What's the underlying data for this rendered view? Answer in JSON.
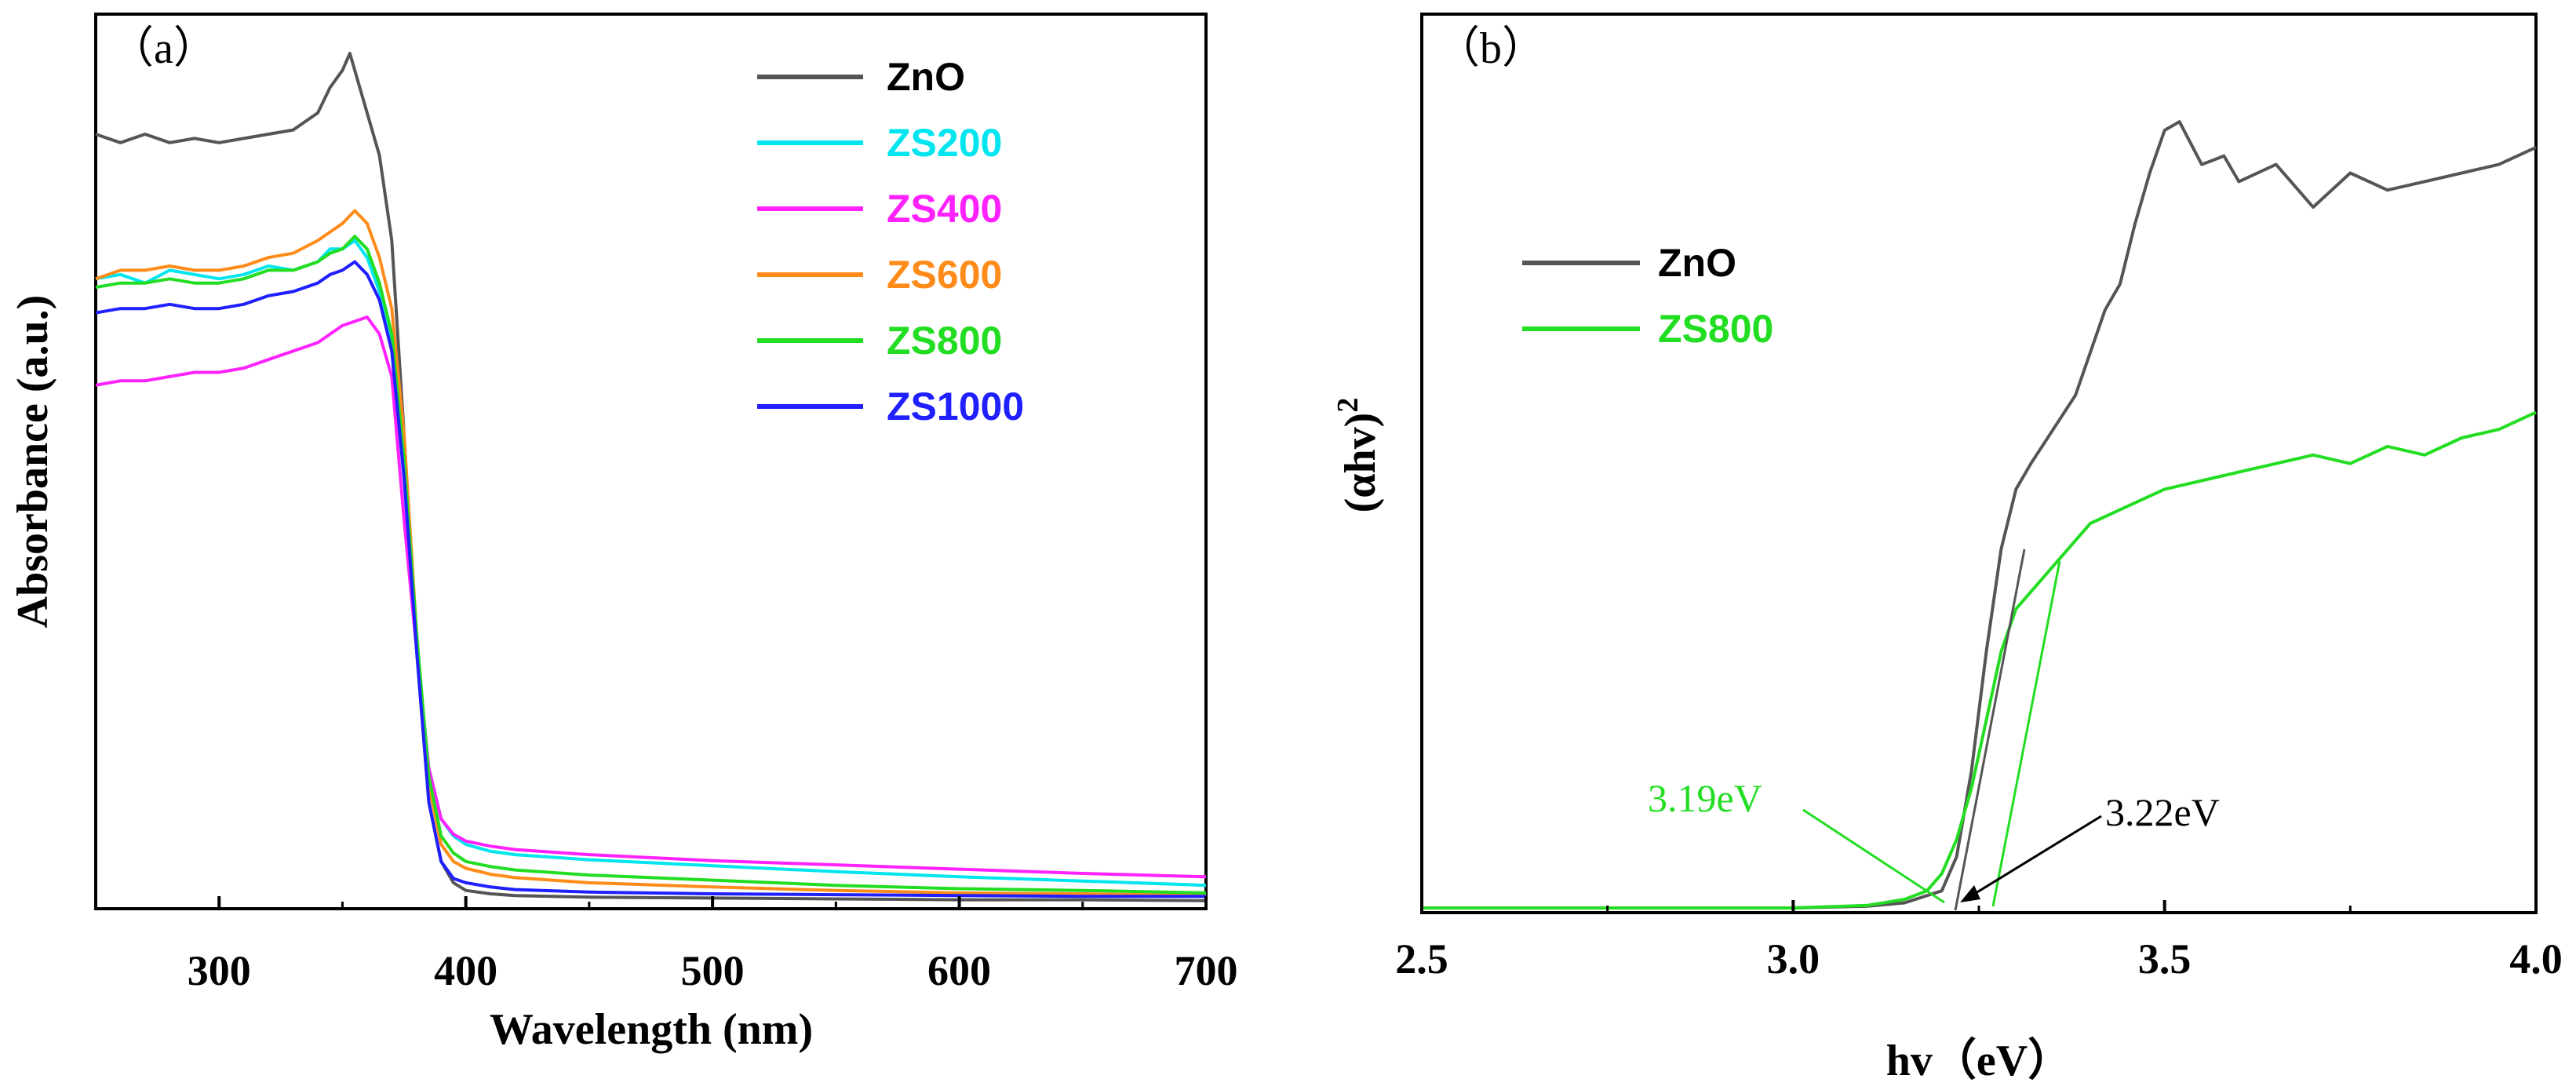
{
  "chart_data": [
    {
      "type": "line",
      "panel_label": "（a）",
      "title": "",
      "xlabel": "Wavelength (nm)",
      "ylabel": "Absorbance (a.u.)",
      "xlim": [
        250,
        700
      ],
      "ylim": [
        0,
        1.0
      ],
      "xticks": [
        300,
        400,
        500,
        600,
        700
      ],
      "yticks_shown": false,
      "legend_position": "top-right",
      "series": [
        {
          "name": "ZnO",
          "color": "#555555",
          "x": [
            250,
            260,
            270,
            280,
            290,
            300,
            310,
            320,
            330,
            340,
            345,
            350,
            353,
            356,
            360,
            365,
            370,
            375,
            380,
            385,
            390,
            395,
            400,
            410,
            420,
            450,
            500,
            550,
            600,
            650,
            700
          ],
          "y": [
            0.905,
            0.895,
            0.905,
            0.895,
            0.9,
            0.895,
            0.9,
            0.905,
            0.91,
            0.93,
            0.96,
            0.98,
            1.0,
            0.97,
            0.93,
            0.88,
            0.78,
            0.55,
            0.3,
            0.12,
            0.05,
            0.025,
            0.016,
            0.012,
            0.01,
            0.008,
            0.007,
            0.006,
            0.005,
            0.005,
            0.004
          ]
        },
        {
          "name": "ZS200",
          "color": "#00e5ee",
          "x": [
            250,
            260,
            270,
            280,
            290,
            300,
            310,
            320,
            330,
            340,
            345,
            350,
            355,
            360,
            365,
            370,
            375,
            380,
            385,
            390,
            395,
            400,
            410,
            420,
            450,
            500,
            550,
            600,
            650,
            700
          ],
          "y": [
            0.735,
            0.74,
            0.73,
            0.745,
            0.74,
            0.735,
            0.74,
            0.75,
            0.745,
            0.755,
            0.77,
            0.77,
            0.78,
            0.76,
            0.72,
            0.66,
            0.5,
            0.3,
            0.16,
            0.1,
            0.08,
            0.07,
            0.062,
            0.058,
            0.052,
            0.045,
            0.038,
            0.032,
            0.027,
            0.022
          ]
        },
        {
          "name": "ZS400",
          "color": "#ff22ff",
          "x": [
            250,
            260,
            270,
            280,
            290,
            300,
            310,
            320,
            330,
            340,
            350,
            355,
            360,
            365,
            370,
            375,
            380,
            385,
            390,
            395,
            400,
            410,
            420,
            450,
            500,
            550,
            600,
            650,
            700
          ],
          "y": [
            0.61,
            0.615,
            0.615,
            0.62,
            0.625,
            0.625,
            0.63,
            0.64,
            0.65,
            0.66,
            0.68,
            0.685,
            0.69,
            0.67,
            0.62,
            0.45,
            0.3,
            0.16,
            0.1,
            0.082,
            0.074,
            0.068,
            0.064,
            0.058,
            0.051,
            0.046,
            0.041,
            0.036,
            0.032
          ]
        },
        {
          "name": "ZS600",
          "color": "#ff8c1a",
          "x": [
            250,
            260,
            270,
            280,
            290,
            300,
            310,
            320,
            330,
            340,
            345,
            350,
            355,
            360,
            365,
            370,
            375,
            380,
            385,
            390,
            395,
            400,
            410,
            420,
            450,
            500,
            550,
            600,
            650,
            700
          ],
          "y": [
            0.735,
            0.745,
            0.745,
            0.75,
            0.745,
            0.745,
            0.75,
            0.76,
            0.765,
            0.78,
            0.79,
            0.8,
            0.815,
            0.8,
            0.76,
            0.7,
            0.55,
            0.32,
            0.14,
            0.07,
            0.05,
            0.042,
            0.035,
            0.031,
            0.025,
            0.02,
            0.016,
            0.013,
            0.012,
            0.01
          ]
        },
        {
          "name": "ZS800",
          "color": "#22dd22",
          "x": [
            250,
            260,
            270,
            280,
            290,
            300,
            310,
            320,
            330,
            340,
            345,
            350,
            355,
            360,
            365,
            370,
            375,
            380,
            385,
            390,
            395,
            400,
            410,
            420,
            450,
            500,
            550,
            600,
            650,
            700
          ],
          "y": [
            0.725,
            0.73,
            0.73,
            0.735,
            0.73,
            0.73,
            0.735,
            0.745,
            0.745,
            0.755,
            0.765,
            0.77,
            0.785,
            0.77,
            0.73,
            0.67,
            0.52,
            0.32,
            0.15,
            0.08,
            0.06,
            0.05,
            0.044,
            0.04,
            0.034,
            0.028,
            0.022,
            0.018,
            0.016,
            0.013
          ]
        },
        {
          "name": "ZS1000",
          "color": "#1f1fff",
          "x": [
            250,
            260,
            270,
            280,
            290,
            300,
            310,
            320,
            330,
            340,
            345,
            350,
            355,
            360,
            365,
            370,
            375,
            380,
            385,
            390,
            395,
            400,
            410,
            420,
            450,
            500,
            550,
            600,
            650,
            700
          ],
          "y": [
            0.695,
            0.7,
            0.7,
            0.705,
            0.7,
            0.7,
            0.705,
            0.715,
            0.72,
            0.73,
            0.74,
            0.745,
            0.755,
            0.74,
            0.71,
            0.65,
            0.5,
            0.3,
            0.12,
            0.05,
            0.03,
            0.025,
            0.02,
            0.017,
            0.014,
            0.012,
            0.011,
            0.01,
            0.009,
            0.009
          ]
        }
      ]
    },
    {
      "type": "line",
      "panel_label": "（b）",
      "title": "",
      "xlabel": "hv（eV）",
      "ylabel": "(αhv)²",
      "ylabel_base": "(αhv)",
      "ylabel_sup": "2",
      "xlim": [
        2.5,
        4.0
      ],
      "ylim": [
        0,
        1.0
      ],
      "xticks": [
        "2.5",
        "3.0",
        "3.5",
        "4.0"
      ],
      "yticks_shown": false,
      "legend_position": "top-left",
      "series": [
        {
          "name": "ZnO",
          "color": "#555555",
          "x": [
            2.5,
            2.8,
            3.0,
            3.1,
            3.15,
            3.2,
            3.22,
            3.24,
            3.26,
            3.28,
            3.3,
            3.32,
            3.35,
            3.38,
            3.4,
            3.42,
            3.44,
            3.46,
            3.48,
            3.5,
            3.52,
            3.55,
            3.58,
            3.6,
            3.65,
            3.7,
            3.75,
            3.8,
            3.85,
            3.9,
            3.95,
            4.0
          ],
          "y": [
            0.0,
            0.0,
            0.0,
            0.002,
            0.006,
            0.02,
            0.06,
            0.16,
            0.3,
            0.42,
            0.49,
            0.52,
            0.56,
            0.6,
            0.65,
            0.7,
            0.73,
            0.8,
            0.86,
            0.91,
            0.92,
            0.87,
            0.88,
            0.85,
            0.87,
            0.82,
            0.86,
            0.84,
            0.85,
            0.86,
            0.87,
            0.89
          ]
        },
        {
          "name": "ZS800",
          "color": "#22dd22",
          "x": [
            2.5,
            2.8,
            3.0,
            3.1,
            3.15,
            3.18,
            3.2,
            3.22,
            3.24,
            3.26,
            3.28,
            3.3,
            3.32,
            3.35,
            3.38,
            3.4,
            3.45,
            3.5,
            3.55,
            3.6,
            3.65,
            3.7,
            3.75,
            3.8,
            3.85,
            3.9,
            3.95,
            4.0
          ],
          "y": [
            0.0,
            0.0,
            0.0,
            0.003,
            0.01,
            0.02,
            0.04,
            0.08,
            0.14,
            0.22,
            0.3,
            0.35,
            0.37,
            0.4,
            0.43,
            0.45,
            0.47,
            0.49,
            0.5,
            0.51,
            0.52,
            0.53,
            0.52,
            0.54,
            0.53,
            0.55,
            0.56,
            0.58
          ]
        }
      ],
      "annotations": [
        {
          "text": "3.19eV",
          "color": "#22dd22",
          "x_value": 3.19
        },
        {
          "text": "3.22eV",
          "color": "#000000",
          "x_value": 3.22
        }
      ]
    }
  ]
}
